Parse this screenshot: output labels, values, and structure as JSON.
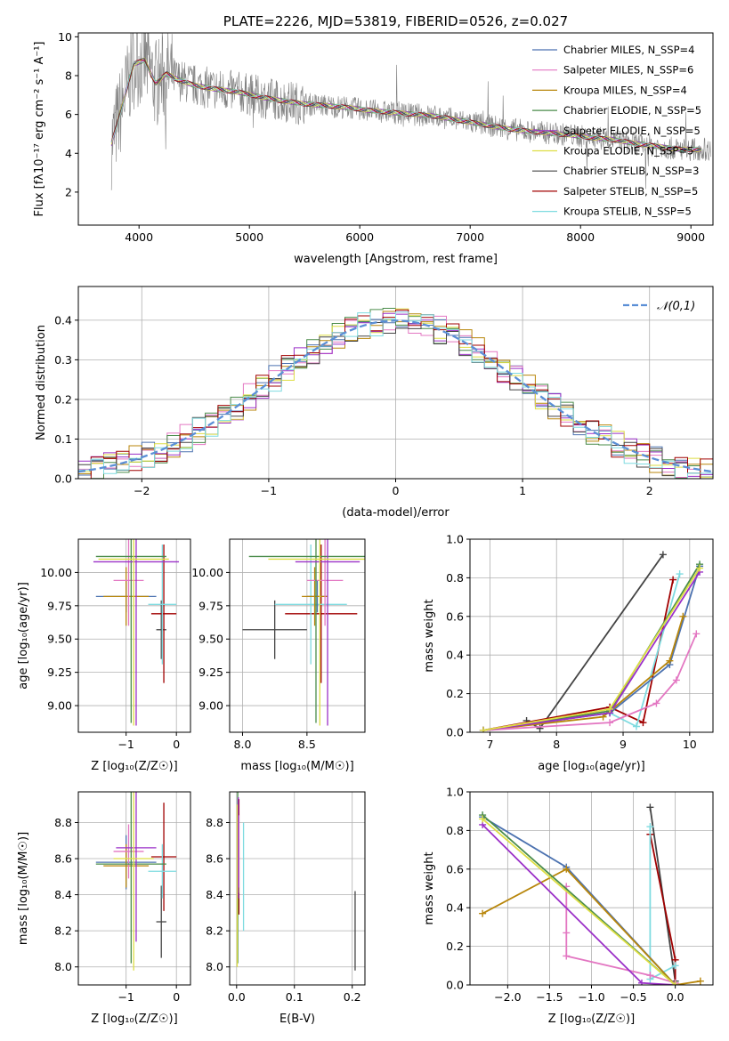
{
  "chart_data": [
    {
      "type": "line",
      "title": "PLATE=2226, MJD=53819, FIBERID=0526, z=0.027",
      "xlabel": "wavelength [Angstrom, rest frame]",
      "ylabel": "Flux [fλ10⁻¹⁷ erg cm⁻² s⁻¹ A⁻¹]",
      "xlim": [
        3450,
        9200
      ],
      "ylim": [
        0.3,
        10.2
      ],
      "xticks": [
        "4000",
        "5000",
        "6000",
        "7000",
        "8000",
        "9000"
      ],
      "yticks": [
        "2",
        "4",
        "6",
        "8",
        "10"
      ],
      "legend_position": "upper-right",
      "series": [
        {
          "name": "Chabrier MILES, N_SSP=4",
          "color": "#4c72b0"
        },
        {
          "name": "Salpeter MILES, N_SSP=6",
          "color": "#e377c2"
        },
        {
          "name": "Kroupa MILES, N_SSP=4",
          "color": "#b8860b"
        },
        {
          "name": "Chabrier ELODIE, N_SSP=5",
          "color": "#4a8c4a"
        },
        {
          "name": "Salpeter ELODIE, N_SSP=5",
          "color": "#9b30c8"
        },
        {
          "name": "Kroupa ELODIE, N_SSP=5",
          "color": "#dede44"
        },
        {
          "name": "Chabrier STELIB, N_SSP=3",
          "color": "#444444"
        },
        {
          "name": "Salpeter STELIB, N_SSP=5",
          "color": "#a00000"
        },
        {
          "name": "Kroupa STELIB, N_SSP=5",
          "color": "#7fdbe0"
        }
      ],
      "data_series": {
        "name": "data",
        "color": "#808080"
      },
      "continuum_x": [
        3750,
        3850,
        3950,
        4050,
        4150,
        4250,
        4350,
        4500,
        4700,
        4900,
        5100,
        5300,
        5500,
        5700,
        5900,
        6100,
        6300,
        6500,
        6700,
        6900,
        7100,
        7300,
        7500,
        7700,
        7900,
        8100,
        8300,
        8500,
        8700,
        8900
      ],
      "continuum_y": [
        4.5,
        6.5,
        8.6,
        8.8,
        7.6,
        8.1,
        7.8,
        7.5,
        7.3,
        7.15,
        6.9,
        6.7,
        6.55,
        6.45,
        6.35,
        6.2,
        6.1,
        6.0,
        5.9,
        5.7,
        5.5,
        5.3,
        5.15,
        5.05,
        4.95,
        4.8,
        4.7,
        4.5,
        4.35,
        4.2
      ]
    },
    {
      "type": "histogram",
      "xlabel": "(data-model)/error",
      "ylabel": "Normed distribution",
      "xlim": [
        -2.5,
        2.5
      ],
      "ylim": [
        0,
        0.485
      ],
      "xticks": [
        "−2",
        "−1",
        "0",
        "1",
        "2"
      ],
      "yticks": [
        "0.0",
        "0.1",
        "0.2",
        "0.3",
        "0.4"
      ],
      "legend_position": "upper-right",
      "reference": {
        "name": "𝒩(0,1)",
        "color": "#5b8fd6"
      },
      "bin_width": 0.1
    },
    {
      "type": "scatter",
      "xlabel": "Z [log₁₀(Z/Z☉)]",
      "ylabel": "age  [log₁₀(age/yr)]",
      "xlim": [
        -1.95,
        0.28
      ],
      "ylim": [
        8.8,
        10.25
      ],
      "xticks": [
        "−1",
        "0"
      ],
      "yticks": [
        "9.00",
        "9.25",
        "9.50",
        "9.75",
        "10.00"
      ],
      "points": [
        {
          "x": -0.3,
          "y": 9.57,
          "xerr": 0.1,
          "yerr": 0.22,
          "color": "#444444"
        },
        {
          "x": -0.25,
          "y": 9.69,
          "xerr": 0.25,
          "yerr": 0.52,
          "color": "#a00000"
        },
        {
          "x": -0.28,
          "y": 9.76,
          "xerr": 0.28,
          "yerr": 0.45,
          "color": "#7fdbe0"
        },
        {
          "x": -1.0,
          "y": 9.82,
          "xerr": 0.6,
          "yerr": 0.12,
          "color": "#4c72b0"
        },
        {
          "x": -1.0,
          "y": 9.82,
          "xerr": 0.45,
          "yerr": 0.22,
          "color": "#b8860b"
        },
        {
          "x": -0.95,
          "y": 9.94,
          "xerr": 0.3,
          "yerr": 0.34,
          "color": "#e377c2"
        },
        {
          "x": -0.9,
          "y": 10.12,
          "xerr": 0.7,
          "yerr": 1.25,
          "color": "#4a8c4a"
        },
        {
          "x": -0.8,
          "y": 10.08,
          "xerr": 0.85,
          "yerr": 1.23,
          "color": "#9b30c8"
        },
        {
          "x": -0.85,
          "y": 10.1,
          "xerr": 0.7,
          "yerr": 1.25,
          "color": "#dede44"
        }
      ]
    },
    {
      "type": "scatter",
      "xlabel": "mass [log₁₀(M/M☉)]",
      "ylabel": "",
      "xlim": [
        7.9,
        8.95
      ],
      "ylim": [
        8.8,
        10.25
      ],
      "xticks": [
        "8.0",
        "8.5"
      ],
      "yticks": [
        "9.00",
        "9.25",
        "9.50",
        "9.75",
        "10.00"
      ],
      "points": [
        {
          "x": 8.25,
          "y": 9.57,
          "xerr": 0.25,
          "yerr": 0.22,
          "color": "#444444"
        },
        {
          "x": 8.61,
          "y": 9.69,
          "xerr": 0.28,
          "yerr": 0.52,
          "color": "#a00000"
        },
        {
          "x": 8.53,
          "y": 9.76,
          "xerr": 0.28,
          "yerr": 0.45,
          "color": "#7fdbe0"
        },
        {
          "x": 8.58,
          "y": 9.82,
          "xerr": 0.08,
          "yerr": 0.12,
          "color": "#4c72b0"
        },
        {
          "x": 8.56,
          "y": 9.82,
          "xerr": 0.1,
          "yerr": 0.22,
          "color": "#b8860b"
        },
        {
          "x": 8.64,
          "y": 9.94,
          "xerr": 0.14,
          "yerr": 0.34,
          "color": "#e377c2"
        },
        {
          "x": 8.57,
          "y": 10.12,
          "xerr": 0.52,
          "yerr": 1.25,
          "color": "#4a8c4a"
        },
        {
          "x": 8.66,
          "y": 10.08,
          "xerr": 0.25,
          "yerr": 1.23,
          "color": "#9b30c8"
        },
        {
          "x": 8.6,
          "y": 10.1,
          "xerr": 0.4,
          "yerr": 1.25,
          "color": "#dede44"
        }
      ]
    },
    {
      "type": "line",
      "xlabel": "age  [log₁₀(age/yr)]",
      "ylabel": "mass weight",
      "xlim": [
        6.7,
        10.35
      ],
      "ylim": [
        0,
        1
      ],
      "xticks": [
        "7",
        "8",
        "9",
        "10"
      ],
      "yticks": [
        "0.0",
        "0.2",
        "0.4",
        "0.6",
        "0.8",
        "1.0"
      ],
      "series": [
        {
          "color": "#444444",
          "x": [
            7.55,
            7.75,
            9.6
          ],
          "y": [
            0.06,
            0.02,
            0.92
          ]
        },
        {
          "color": "#a00000",
          "x": [
            6.9,
            8.8,
            9.3,
            9.75
          ],
          "y": [
            0.01,
            0.13,
            0.05,
            0.79
          ]
        },
        {
          "color": "#7fdbe0",
          "x": [
            6.9,
            8.8,
            9.2,
            9.85
          ],
          "y": [
            0.01,
            0.1,
            0.03,
            0.82
          ]
        },
        {
          "color": "#4c72b0",
          "x": [
            6.9,
            8.8,
            9.7,
            10.15
          ],
          "y": [
            0.01,
            0.1,
            0.35,
            0.86
          ]
        },
        {
          "color": "#b8860b",
          "x": [
            6.9,
            8.7,
            9.7,
            9.9
          ],
          "y": [
            0.01,
            0.08,
            0.37,
            0.6
          ]
        },
        {
          "color": "#e377c2",
          "x": [
            6.9,
            8.8,
            9.5,
            9.8,
            10.1
          ],
          "y": [
            0.01,
            0.05,
            0.15,
            0.27,
            0.51
          ]
        },
        {
          "color": "#4a8c4a",
          "x": [
            6.9,
            8.8,
            10.15
          ],
          "y": [
            0.01,
            0.11,
            0.87
          ]
        },
        {
          "color": "#9b30c8",
          "x": [
            6.9,
            8.8,
            10.15
          ],
          "y": [
            0.01,
            0.1,
            0.83
          ]
        },
        {
          "color": "#dede44",
          "x": [
            6.9,
            8.8,
            10.15
          ],
          "y": [
            0.01,
            0.12,
            0.85
          ]
        }
      ]
    },
    {
      "type": "scatter",
      "xlabel": "Z [log₁₀(Z/Z☉)]",
      "ylabel": "mass [log₁₀(M/M☉)]",
      "xlim": [
        -1.95,
        0.28
      ],
      "ylim": [
        7.9,
        8.97
      ],
      "xticks": [
        "−1",
        "0"
      ],
      "yticks": [
        "8.0",
        "8.2",
        "8.4",
        "8.6",
        "8.8"
      ],
      "points": [
        {
          "x": -0.3,
          "y": 8.25,
          "xerr": 0.1,
          "yerr": 0.2,
          "color": "#444444"
        },
        {
          "x": -0.25,
          "y": 8.61,
          "xerr": 0.25,
          "yerr": 0.3,
          "color": "#a00000"
        },
        {
          "x": -0.28,
          "y": 8.53,
          "xerr": 0.28,
          "yerr": 0.15,
          "color": "#7fdbe0"
        },
        {
          "x": -1.0,
          "y": 8.58,
          "xerr": 0.6,
          "yerr": 0.15,
          "color": "#4c72b0"
        },
        {
          "x": -1.0,
          "y": 8.56,
          "xerr": 0.45,
          "yerr": 0.12,
          "color": "#b8860b"
        },
        {
          "x": -0.95,
          "y": 8.64,
          "xerr": 0.3,
          "yerr": 0.15,
          "color": "#e377c2"
        },
        {
          "x": -0.9,
          "y": 8.57,
          "xerr": 0.7,
          "yerr": 0.55,
          "color": "#4a8c4a"
        },
        {
          "x": -0.8,
          "y": 8.66,
          "xerr": 0.4,
          "yerr": 0.52,
          "color": "#9b30c8"
        },
        {
          "x": -0.85,
          "y": 8.6,
          "xerr": 0.4,
          "yerr": 0.62,
          "color": "#dede44"
        }
      ]
    },
    {
      "type": "scatter",
      "xlabel": "E(B-V)",
      "ylabel": "",
      "xlim": [
        -0.012,
        0.222
      ],
      "ylim": [
        7.9,
        8.97
      ],
      "xticks": [
        "0.0",
        "0.1",
        "0.2"
      ],
      "yticks": [
        "8.0",
        "8.2",
        "8.4",
        "8.6",
        "8.8"
      ],
      "points": [
        {
          "x": 0.205,
          "y": 8.2,
          "yerr": 0.22,
          "color": "#444444"
        },
        {
          "x": 0.004,
          "y": 8.61,
          "yerr": 0.32,
          "color": "#a00000"
        },
        {
          "x": 0.012,
          "y": 8.5,
          "yerr": 0.3,
          "color": "#7fdbe0"
        },
        {
          "x": 0.003,
          "y": 8.58,
          "yerr": 0.2,
          "color": "#4c72b0"
        },
        {
          "x": 0.004,
          "y": 8.56,
          "yerr": 0.15,
          "color": "#b8860b"
        },
        {
          "x": 0.004,
          "y": 8.64,
          "yerr": 0.2,
          "color": "#e377c2"
        },
        {
          "x": 0.002,
          "y": 8.57,
          "yerr": 0.55,
          "color": "#4a8c4a"
        },
        {
          "x": 0.003,
          "y": 8.66,
          "yerr": 0.28,
          "color": "#9b30c8"
        },
        {
          "x": 0.001,
          "y": 8.45,
          "yerr": 0.45,
          "color": "#dede44"
        }
      ]
    },
    {
      "type": "line",
      "xlabel": "Z [log₁₀(Z/Z☉)]",
      "ylabel": "mass weight",
      "xlim": [
        -2.45,
        0.45
      ],
      "ylim": [
        0,
        1
      ],
      "xticks": [
        "−2.0",
        "−1.5",
        "−1.0",
        "−0.5",
        "0.0"
      ],
      "yticks": [
        "0.0",
        "0.2",
        "0.4",
        "0.6",
        "0.8",
        "1.0"
      ],
      "series": [
        {
          "color": "#444444",
          "x": [
            -0.3,
            0.0
          ],
          "y": [
            0.92,
            0.02
          ]
        },
        {
          "color": "#a00000",
          "x": [
            -0.3,
            0.0,
            0.0
          ],
          "y": [
            0.78,
            0.13,
            0.0
          ]
        },
        {
          "color": "#7fdbe0",
          "x": [
            -0.3,
            -0.3,
            0.0
          ],
          "y": [
            0.82,
            0.03,
            0.1
          ]
        },
        {
          "color": "#4c72b0",
          "x": [
            -2.3,
            -1.3,
            0.0
          ],
          "y": [
            0.87,
            0.61,
            0.0
          ]
        },
        {
          "color": "#b8860b",
          "x": [
            -2.3,
            -1.3,
            0.0,
            0.3
          ],
          "y": [
            0.37,
            0.6,
            0.0,
            0.02
          ]
        },
        {
          "color": "#e377c2",
          "x": [
            -1.3,
            -1.3,
            -1.3,
            -0.3,
            0.0
          ],
          "y": [
            0.51,
            0.27,
            0.15,
            0.05,
            0.01
          ]
        },
        {
          "color": "#4a8c4a",
          "x": [
            -2.3,
            0.0
          ],
          "y": [
            0.88,
            0.0
          ]
        },
        {
          "color": "#9b30c8",
          "x": [
            -2.3,
            -0.4,
            0.0
          ],
          "y": [
            0.83,
            0.01,
            0.0
          ]
        },
        {
          "color": "#dede44",
          "x": [
            -2.3,
            0.0
          ],
          "y": [
            0.86,
            0.0
          ]
        }
      ]
    }
  ]
}
